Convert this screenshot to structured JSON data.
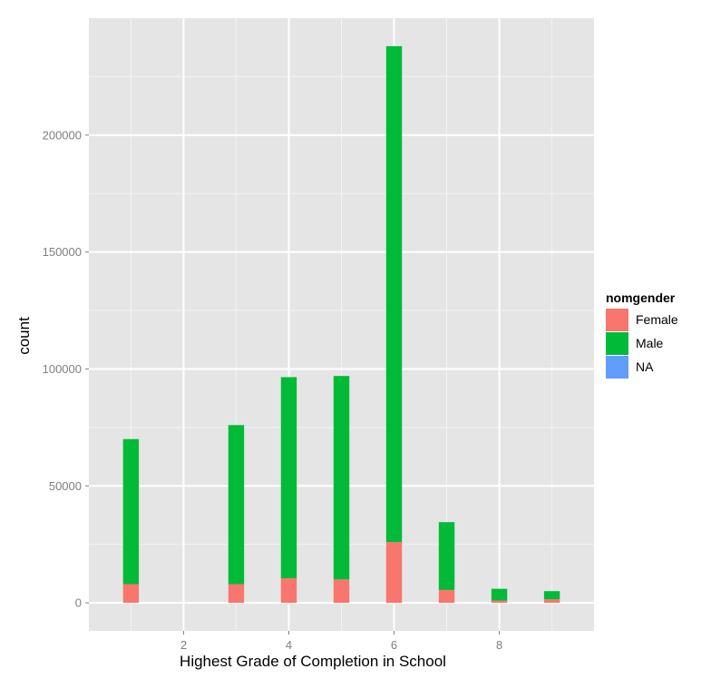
{
  "chart_data": {
    "type": "bar",
    "stacked": true,
    "xlabel": "Highest Grade of Completion in School",
    "ylabel": "count",
    "x_ticks": [
      2,
      4,
      6,
      8
    ],
    "y_ticks": [
      0,
      50000,
      100000,
      150000,
      200000
    ],
    "x_tick_labels": [
      "2",
      "4",
      "6",
      "8"
    ],
    "y_tick_labels": [
      "0",
      "50000",
      "100000",
      "150000",
      "200000"
    ],
    "xlim": [
      0.2,
      9.8
    ],
    "ylim": [
      -12000,
      250000
    ],
    "grid": true,
    "legend": {
      "title": "nomgender",
      "position": "right"
    },
    "x": [
      1,
      3,
      4,
      5,
      6,
      7,
      8,
      9
    ],
    "series": [
      {
        "name": "Female",
        "color": "#f8766d",
        "values": [
          8000,
          8000,
          10500,
          10000,
          26000,
          5500,
          1000,
          1500
        ]
      },
      {
        "name": "Male",
        "color": "#00ba38",
        "values": [
          62000,
          68000,
          86000,
          87000,
          212000,
          29000,
          5000,
          3500
        ]
      },
      {
        "name": "NA",
        "color": "#619cff",
        "values": [
          0,
          0,
          0,
          0,
          0,
          0,
          0,
          0
        ]
      }
    ]
  }
}
